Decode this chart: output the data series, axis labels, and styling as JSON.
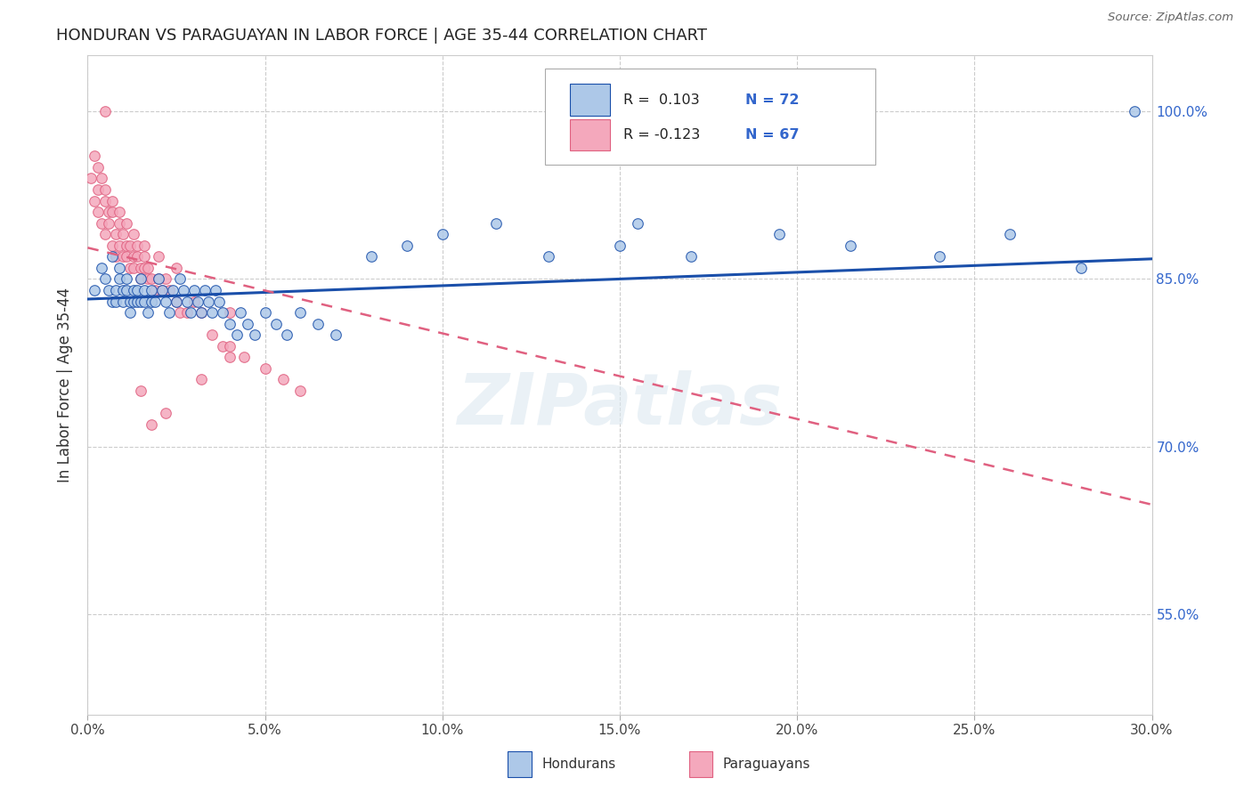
{
  "title": "HONDURAN VS PARAGUAYAN IN LABOR FORCE | AGE 35-44 CORRELATION CHART",
  "source": "Source: ZipAtlas.com",
  "ylabel_label": "In Labor Force | Age 35-44",
  "xmin": 0.0,
  "xmax": 0.3,
  "ymin": 0.46,
  "ymax": 1.05,
  "y_tick_vals": [
    0.55,
    0.7,
    0.85,
    1.0
  ],
  "y_tick_labels": [
    "55.0%",
    "70.0%",
    "85.0%",
    "100.0%"
  ],
  "x_tick_vals": [
    0.0,
    0.05,
    0.1,
    0.15,
    0.2,
    0.25,
    0.3
  ],
  "x_tick_labels": [
    "0.0%",
    "5.0%",
    "10.0%",
    "15.0%",
    "20.0%",
    "25.0%",
    "30.0%"
  ],
  "honduran_color": "#adc8e8",
  "paraguayan_color": "#f4a8bc",
  "trend_honduran_color": "#1a4faa",
  "trend_paraguayan_color": "#e06080",
  "legend_R_honduran": "R =  0.103",
  "legend_N_honduran": "N = 72",
  "legend_R_paraguayan": "R = -0.123",
  "legend_N_paraguayan": "N = 67",
  "watermark": "ZIPatlas",
  "honduran_trend": [
    0.832,
    0.868
  ],
  "paraguayan_trend": [
    0.878,
    0.648
  ],
  "honduran_x": [
    0.002,
    0.004,
    0.005,
    0.006,
    0.007,
    0.007,
    0.008,
    0.008,
    0.009,
    0.009,
    0.01,
    0.01,
    0.011,
    0.011,
    0.012,
    0.012,
    0.013,
    0.013,
    0.014,
    0.014,
    0.015,
    0.015,
    0.016,
    0.016,
    0.017,
    0.018,
    0.018,
    0.019,
    0.02,
    0.021,
    0.022,
    0.023,
    0.024,
    0.025,
    0.026,
    0.027,
    0.028,
    0.029,
    0.03,
    0.031,
    0.032,
    0.033,
    0.034,
    0.035,
    0.036,
    0.037,
    0.038,
    0.04,
    0.042,
    0.043,
    0.045,
    0.047,
    0.05,
    0.053,
    0.056,
    0.06,
    0.065,
    0.07,
    0.08,
    0.09,
    0.1,
    0.115,
    0.13,
    0.15,
    0.17,
    0.195,
    0.215,
    0.24,
    0.26,
    0.155,
    0.28,
    0.295
  ],
  "honduran_y": [
    0.84,
    0.86,
    0.85,
    0.84,
    0.83,
    0.87,
    0.84,
    0.83,
    0.85,
    0.86,
    0.84,
    0.83,
    0.85,
    0.84,
    0.83,
    0.82,
    0.84,
    0.83,
    0.84,
    0.83,
    0.85,
    0.83,
    0.84,
    0.83,
    0.82,
    0.83,
    0.84,
    0.83,
    0.85,
    0.84,
    0.83,
    0.82,
    0.84,
    0.83,
    0.85,
    0.84,
    0.83,
    0.82,
    0.84,
    0.83,
    0.82,
    0.84,
    0.83,
    0.82,
    0.84,
    0.83,
    0.82,
    0.81,
    0.8,
    0.82,
    0.81,
    0.8,
    0.82,
    0.81,
    0.8,
    0.82,
    0.81,
    0.8,
    0.87,
    0.88,
    0.89,
    0.9,
    0.87,
    0.88,
    0.87,
    0.89,
    0.88,
    0.87,
    0.89,
    0.9,
    0.86,
    1.0
  ],
  "paraguayan_x": [
    0.001,
    0.002,
    0.003,
    0.003,
    0.004,
    0.004,
    0.005,
    0.005,
    0.006,
    0.006,
    0.007,
    0.007,
    0.008,
    0.008,
    0.009,
    0.009,
    0.01,
    0.01,
    0.011,
    0.011,
    0.012,
    0.012,
    0.013,
    0.013,
    0.014,
    0.014,
    0.015,
    0.015,
    0.016,
    0.016,
    0.017,
    0.017,
    0.018,
    0.019,
    0.02,
    0.021,
    0.022,
    0.023,
    0.025,
    0.026,
    0.028,
    0.03,
    0.032,
    0.035,
    0.038,
    0.04,
    0.044,
    0.05,
    0.055,
    0.06,
    0.002,
    0.003,
    0.005,
    0.007,
    0.009,
    0.011,
    0.013,
    0.016,
    0.02,
    0.025,
    0.032,
    0.04,
    0.015,
    0.018,
    0.022,
    0.005,
    0.04
  ],
  "paraguayan_y": [
    0.94,
    0.92,
    0.91,
    0.93,
    0.9,
    0.94,
    0.89,
    0.92,
    0.91,
    0.9,
    0.88,
    0.91,
    0.89,
    0.87,
    0.9,
    0.88,
    0.87,
    0.89,
    0.88,
    0.87,
    0.86,
    0.88,
    0.87,
    0.86,
    0.88,
    0.87,
    0.86,
    0.85,
    0.87,
    0.86,
    0.85,
    0.86,
    0.85,
    0.84,
    0.85,
    0.84,
    0.85,
    0.84,
    0.83,
    0.82,
    0.82,
    0.83,
    0.82,
    0.8,
    0.79,
    0.79,
    0.78,
    0.77,
    0.76,
    0.75,
    0.96,
    0.95,
    0.93,
    0.92,
    0.91,
    0.9,
    0.89,
    0.88,
    0.87,
    0.86,
    0.76,
    0.78,
    0.75,
    0.72,
    0.73,
    1.0,
    0.82
  ]
}
